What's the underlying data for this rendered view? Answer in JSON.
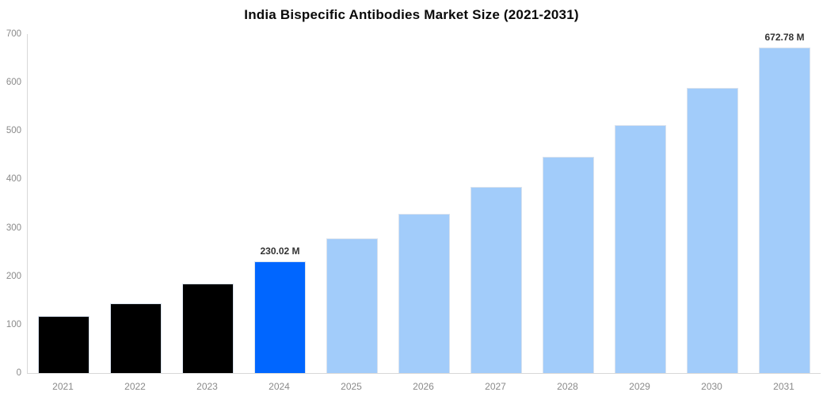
{
  "chart_data": {
    "type": "bar",
    "title": "India Bispecific Antibodies Market Size (2021-2031)",
    "categories": [
      "2021",
      "2022",
      "2023",
      "2024",
      "2025",
      "2026",
      "2027",
      "2028",
      "2029",
      "2030",
      "2031"
    ],
    "values": [
      118,
      144,
      185,
      230.02,
      278,
      328,
      384,
      446,
      512,
      588,
      672.78
    ],
    "unit": "M",
    "point_labels": [
      "",
      "",
      "",
      "230.02 M",
      "",
      "",
      "",
      "",
      "",
      "",
      "672.78 M"
    ],
    "colors": [
      "#000000",
      "#000000",
      "#000000",
      "#0066ff",
      "#a2ccfa",
      "#a2ccfa",
      "#a2ccfa",
      "#a2ccfa",
      "#a2ccfa",
      "#a2ccfa",
      "#a2ccfa"
    ],
    "ylim": [
      0,
      700
    ],
    "yticks": [
      0,
      100,
      200,
      300,
      400,
      500,
      600,
      700
    ],
    "xlabel": "",
    "ylabel": "",
    "grid": false,
    "legend": false,
    "axis_color": "#d8d8d8",
    "tick_label_color": "#8a8a8a",
    "data_label_color": "#333333",
    "title_color": "#0a0a0a"
  }
}
